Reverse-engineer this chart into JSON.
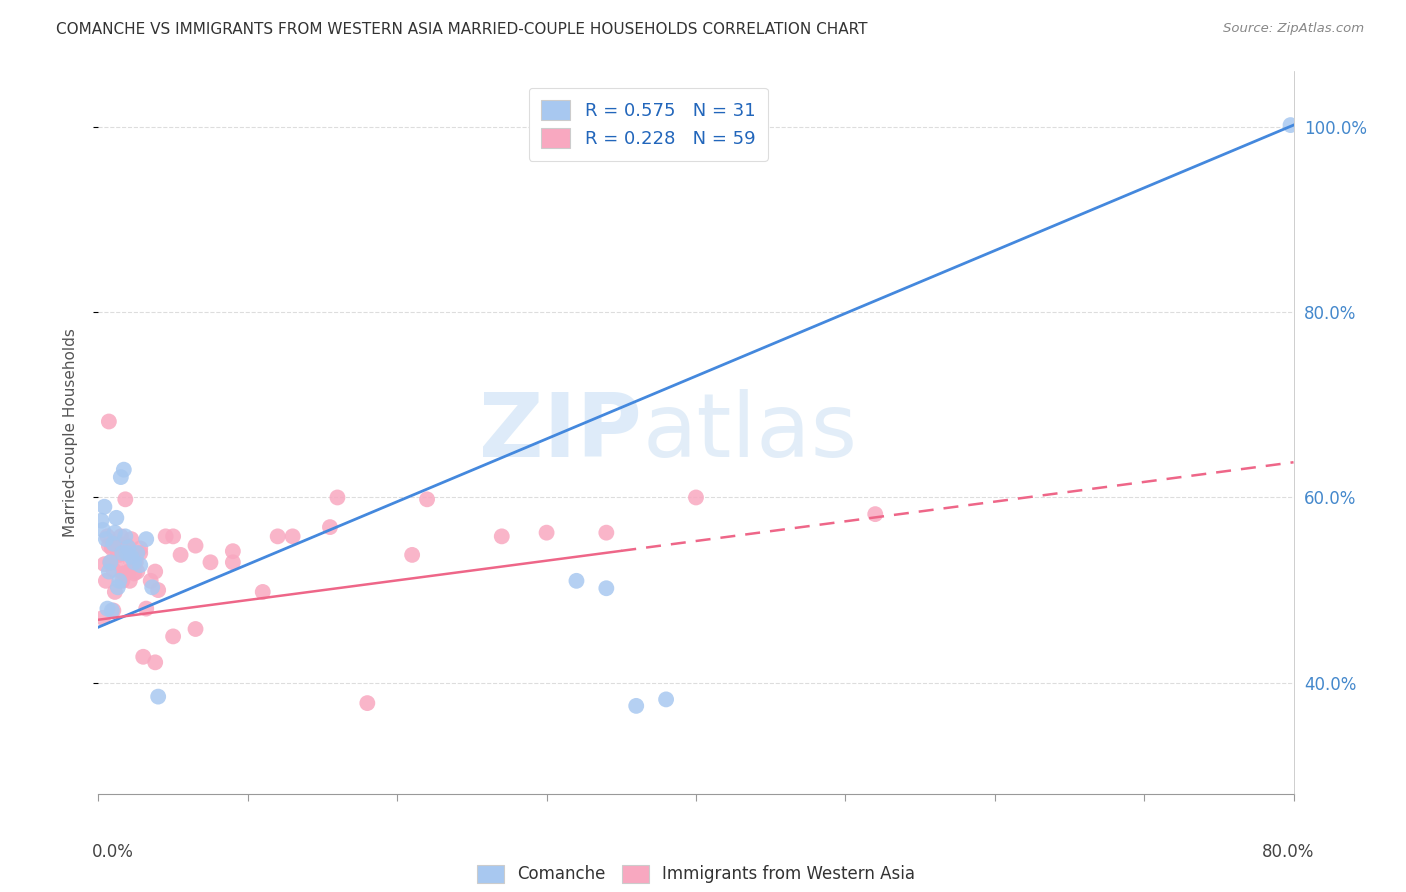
{
  "title": "COMANCHE VS IMMIGRANTS FROM WESTERN ASIA MARRIED-COUPLE HOUSEHOLDS CORRELATION CHART",
  "source": "Source: ZipAtlas.com",
  "ylabel": "Married-couple Households",
  "xmin": 0.0,
  "xmax": 0.8,
  "ymin": 0.28,
  "ymax": 1.06,
  "legend1_r": "R = 0.575",
  "legend1_n": "N = 31",
  "legend2_r": "R = 0.228",
  "legend2_n": "N = 59",
  "blue_scatter_color": "#A8C8F0",
  "pink_scatter_color": "#F8A8C0",
  "blue_line_color": "#4488DD",
  "pink_solid_color": "#EE6688",
  "pink_dash_color": "#EE6688",
  "ytick_values": [
    0.4,
    0.6,
    0.8,
    1.0
  ],
  "xtick_count": 9,
  "blue_line_x0": 0.0,
  "blue_line_x1": 0.8,
  "blue_line_y0": 0.46,
  "blue_line_y1": 1.002,
  "pink_line_x0": 0.0,
  "pink_line_x1": 0.8,
  "pink_line_y0": 0.468,
  "pink_line_y1": 0.638,
  "comanche_x": [
    0.002,
    0.003,
    0.004,
    0.005,
    0.006,
    0.007,
    0.008,
    0.009,
    0.01,
    0.011,
    0.012,
    0.013,
    0.014,
    0.015,
    0.016,
    0.017,
    0.018,
    0.019,
    0.02,
    0.022,
    0.024,
    0.026,
    0.028,
    0.032,
    0.036,
    0.04,
    0.32,
    0.34,
    0.36,
    0.38,
    0.798
  ],
  "comanche_y": [
    0.575,
    0.565,
    0.59,
    0.555,
    0.48,
    0.52,
    0.53,
    0.478,
    0.55,
    0.562,
    0.578,
    0.503,
    0.51,
    0.622,
    0.54,
    0.63,
    0.558,
    0.54,
    0.546,
    0.536,
    0.53,
    0.54,
    0.527,
    0.555,
    0.503,
    0.385,
    0.51,
    0.502,
    0.375,
    0.382,
    1.002
  ],
  "westernasia_x": [
    0.003,
    0.004,
    0.005,
    0.006,
    0.007,
    0.008,
    0.009,
    0.01,
    0.011,
    0.012,
    0.013,
    0.014,
    0.015,
    0.016,
    0.017,
    0.018,
    0.019,
    0.02,
    0.021,
    0.022,
    0.023,
    0.024,
    0.025,
    0.026,
    0.028,
    0.03,
    0.032,
    0.035,
    0.038,
    0.04,
    0.045,
    0.05,
    0.055,
    0.065,
    0.075,
    0.09,
    0.11,
    0.13,
    0.155,
    0.18,
    0.007,
    0.01,
    0.014,
    0.018,
    0.022,
    0.028,
    0.038,
    0.05,
    0.065,
    0.09,
    0.12,
    0.16,
    0.21,
    0.27,
    0.34,
    0.22,
    0.3,
    0.4,
    0.52
  ],
  "westernasia_y": [
    0.47,
    0.528,
    0.51,
    0.558,
    0.682,
    0.53,
    0.545,
    0.478,
    0.498,
    0.53,
    0.54,
    0.55,
    0.558,
    0.51,
    0.518,
    0.598,
    0.548,
    0.52,
    0.51,
    0.53,
    0.538,
    0.518,
    0.53,
    0.52,
    0.54,
    0.428,
    0.48,
    0.51,
    0.52,
    0.5,
    0.558,
    0.45,
    0.538,
    0.548,
    0.53,
    0.542,
    0.498,
    0.558,
    0.568,
    0.378,
    0.548,
    0.522,
    0.538,
    0.518,
    0.555,
    0.545,
    0.422,
    0.558,
    0.458,
    0.53,
    0.558,
    0.6,
    0.538,
    0.558,
    0.562,
    0.598,
    0.562,
    0.6,
    0.582
  ]
}
